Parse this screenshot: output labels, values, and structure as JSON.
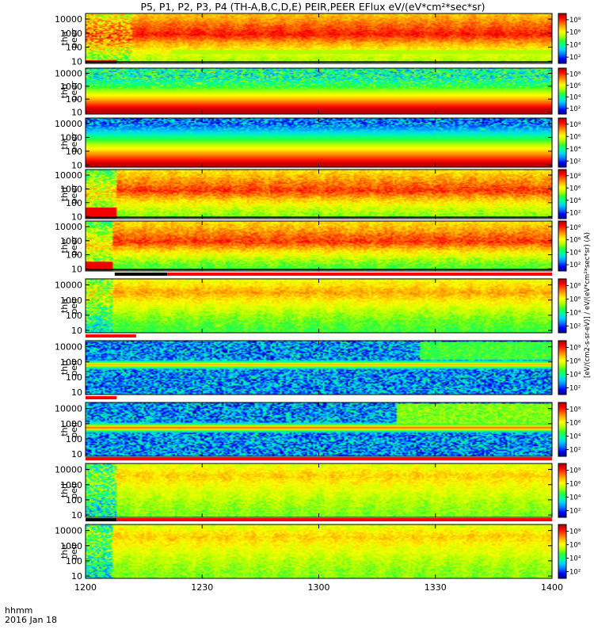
{
  "chart_data": {
    "type": "heatmap",
    "title": "P5, P1, P2, P3, P4 (TH-A,B,C,D,E) PEIR,PEER EFlux eV/(eV*cm²*sec*sr)",
    "x_axis": {
      "ticks": [
        "1200",
        "1230",
        "1300",
        "1330",
        "1400"
      ],
      "tick_minutes": [
        0,
        30,
        60,
        90,
        120
      ],
      "range_minutes": [
        0,
        120
      ],
      "label_line1": "hhmm",
      "label_line2": "2016 Jan 18"
    },
    "y_axis": {
      "scale": "log",
      "range_eV": [
        7,
        25000
      ],
      "ticks": [
        "10",
        "100",
        "1000",
        "10000"
      ],
      "tick_values": [
        10,
        100,
        1000,
        10000
      ]
    },
    "colorbar": {
      "scale": "log",
      "tick_labels": [
        "10²",
        "10⁴",
        "10⁶",
        "10⁸"
      ],
      "tick_exponents": [
        2,
        4,
        6,
        8
      ],
      "range_exponents": [
        1,
        9
      ],
      "label": "[eV/(cm2-s-sr-eV)] / eV/(eV*cm²*sec*sr) (A)"
    },
    "colormap": [
      "#ffffff",
      "#000088",
      "#0000ff",
      "#0078ff",
      "#00d2ff",
      "#00ff96",
      "#32ff32",
      "#b4ff00",
      "#ffff00",
      "#ffb400",
      "#ff5a00",
      "#ff0000",
      "#aa0000"
    ],
    "panels": [
      {
        "name": "tha peer",
        "label_line1": "tha",
        "label_line2": "peer",
        "status_bar": null,
        "model": {
          "pieces": [
            {
              "t": [
                0,
                12
              ],
              "peakE": 500,
              "hiLvl": 0.84,
              "loLvl": 0.55,
              "noise": 0.14
            },
            {
              "t": [
                12,
                120
              ],
              "peakE": 800,
              "hiLvl": 0.9,
              "loLvl": 0.58,
              "noise": 0.05
            }
          ],
          "band": {
            "t": [
              22,
              120
            ],
            "e": 45,
            "lvl": 0.58,
            "width": 0.12
          },
          "floor": {
            "t": [
              0,
              8
            ],
            "e_top": 12,
            "lvl": 0.93
          },
          "edge_line": true
        }
      },
      {
        "name": "thb peer",
        "label_line1": "thb",
        "label_line2": "peer",
        "status_bar": null,
        "model": {
          "mode": "low",
          "low_peak_e": 15,
          "hi_noise": true,
          "bg_lvl": 0.42
        }
      },
      {
        "name": "thc peer",
        "label_line1": "thc",
        "label_line2": "peer",
        "status_bar": null,
        "model": {
          "mode": "low",
          "low_peak_e": 12,
          "hi_noise": true,
          "bg_lvl": 0.25,
          "band": {
            "t": [
              0,
              120
            ],
            "e": 80,
            "lvl": 0.78,
            "width": 0.12
          }
        }
      },
      {
        "name": "thd peer",
        "label_line1": "thd",
        "label_line2": "peer",
        "status_bar": null,
        "model": {
          "pieces": [
            {
              "t": [
                0,
                8
              ],
              "peakE": 400,
              "hiLvl": 0.7,
              "loLvl": 0.5,
              "noise": 0.12
            },
            {
              "t": [
                8,
                120
              ],
              "peakE": 700,
              "hiLvl": 0.87,
              "loLvl": 0.55,
              "noise": 0.06
            }
          ],
          "floor": {
            "t": [
              0,
              8
            ],
            "e_top": 45,
            "lvl": 0.93
          },
          "edge_line": true
        }
      },
      {
        "name": "the peer",
        "label_line1": "the",
        "label_line2": "peer",
        "status_bar": null,
        "model": {
          "pieces": [
            {
              "t": [
                0,
                7
              ],
              "peakE": 400,
              "hiLvl": 0.7,
              "loLvl": 0.5,
              "noise": 0.12
            },
            {
              "t": [
                7,
                120
              ],
              "peakE": 800,
              "hiLvl": 0.87,
              "loLvl": 0.5,
              "noise": 0.06
            }
          ],
          "floor": {
            "t": [
              0,
              7
            ],
            "e_top": 30,
            "lvl": 0.93
          },
          "edge_line": true
        }
      },
      {
        "name": "tha peir",
        "label_line1": "tha",
        "label_line2": "peir",
        "status_bar": {
          "colors": [
            "#ff0000",
            "#000000"
          ],
          "black_t": [
            7.5,
            21
          ],
          "red_after": 21
        },
        "model": {
          "pieces": [
            {
              "t": [
                0,
                7
              ],
              "peakE": 2000,
              "hiLvl": 0.65,
              "loLvl": 0.4,
              "noise": 0.15
            },
            {
              "t": [
                7,
                120
              ],
              "peakE": 3000,
              "hiLvl": 0.76,
              "loLvl": 0.5,
              "noise": 0.05
            }
          ]
        }
      },
      {
        "name": "thb peir",
        "label_line1": "thb",
        "label_line2": "peir",
        "status_bar": {
          "colors": [
            "#ff0000"
          ],
          "red_t": [
            0,
            13
          ]
        },
        "model": {
          "mode": "low",
          "low_peak_e": 0,
          "hi_noise": true,
          "bg_lvl": 0.28,
          "band": {
            "t": [
              0,
              120
            ],
            "e": 650,
            "lvl": 0.78,
            "width": 0.1
          },
          "patch": {
            "t": [
              86,
              120
            ],
            "e": [
              1500,
              20000
            ],
            "lvl": 0.5
          }
        }
      },
      {
        "name": "thc peir",
        "label_line1": "thc",
        "label_line2": "peir",
        "status_bar": {
          "colors": [
            "#ff0000"
          ],
          "red_t": [
            0,
            8
          ]
        },
        "model": {
          "mode": "low",
          "low_peak_e": 0,
          "hi_noise": true,
          "bg_lvl": 0.28,
          "band": {
            "t": [
              0,
              120
            ],
            "e": 550,
            "lvl": 0.85,
            "width": 0.1
          },
          "patch": {
            "t": [
              80,
              120
            ],
            "e": [
              1000,
              20000
            ],
            "lvl": 0.55
          }
        }
      },
      {
        "name": "thd peir",
        "label_line1": "thd",
        "label_line2": "peir",
        "status_bar": {
          "colors": [
            "#ff0000"
          ],
          "red_t": [
            0,
            120
          ]
        },
        "model": {
          "pieces": [
            {
              "t": [
                0,
                8
              ],
              "peakE": 3000,
              "hiLvl": 0.55,
              "loLvl": 0.4,
              "noise": 0.18
            },
            {
              "t": [
                8,
                120
              ],
              "peakE": 4000,
              "hiLvl": 0.72,
              "loLvl": 0.55,
              "noise": 0.05
            }
          ]
        }
      },
      {
        "name": "the peir",
        "label_line1": "the",
        "label_line2": "peir",
        "status_bar": {
          "colors": [
            "#ff0000",
            "#000000"
          ],
          "black_t": [
            0,
            8
          ],
          "red_after": 8
        },
        "model": {
          "pieces": [
            {
              "t": [
                0,
                7
              ],
              "peakE": 3000,
              "hiLvl": 0.55,
              "loLvl": 0.4,
              "noise": 0.18
            },
            {
              "t": [
                7,
                120
              ],
              "peakE": 4000,
              "hiLvl": 0.72,
              "loLvl": 0.55,
              "noise": 0.05
            }
          ]
        }
      }
    ]
  }
}
